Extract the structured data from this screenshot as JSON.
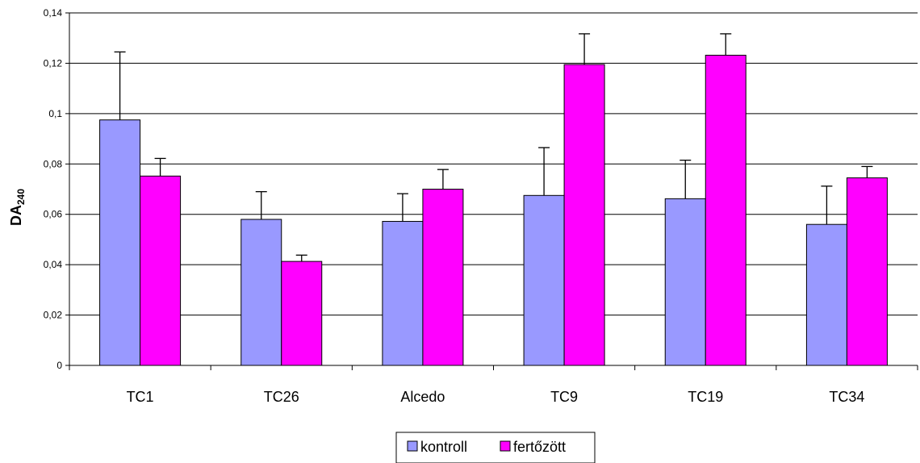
{
  "chart_data": {
    "type": "bar",
    "ylabel_main": "DA",
    "ylabel_sub": "240",
    "xlabel": "",
    "ylim": [
      0,
      0.14
    ],
    "yticks": [
      0,
      0.02,
      0.04,
      0.06,
      0.08,
      0.1,
      0.12,
      0.14
    ],
    "ytick_labels": [
      "0",
      "0,02",
      "0,04",
      "0,06",
      "0,08",
      "0,1",
      "0,12",
      "0,14"
    ],
    "grid": true,
    "legend_position": "bottom-center",
    "categories": [
      "TC1",
      "TC26",
      "Alcedo",
      "TC9",
      "TC19",
      "TC34"
    ],
    "series": [
      {
        "name": "kontroll",
        "color": "#9999ff",
        "values": [
          0.0975,
          0.058,
          0.0572,
          0.0675,
          0.0662,
          0.056
        ],
        "errors": [
          0.027,
          0.011,
          0.011,
          0.019,
          0.0153,
          0.0152
        ]
      },
      {
        "name": "fertőzött",
        "color": "#ff00ff",
        "values": [
          0.0752,
          0.0413,
          0.07,
          0.1195,
          0.1232,
          0.0745
        ],
        "errors": [
          0.007,
          0.0025,
          0.0078,
          0.0122,
          0.0085,
          0.0045
        ]
      }
    ]
  }
}
